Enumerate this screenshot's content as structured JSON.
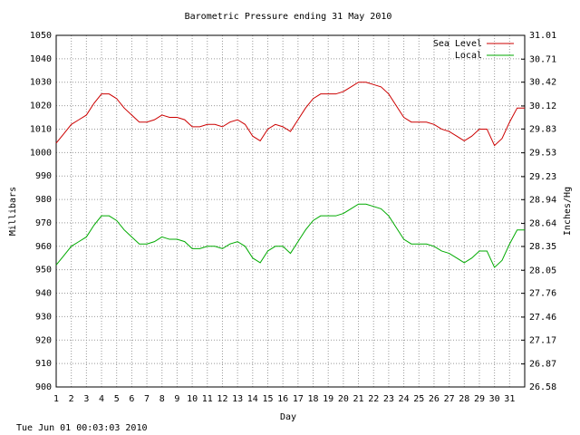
{
  "chart_data": {
    "type": "line",
    "title": "Barometric Pressure ending 31 May 2010",
    "ylabel": "Millibars",
    "y2label": "Inches/Hg",
    "xlabel": "Day",
    "footer": "Tue Jun 01 00:03:03 2010",
    "grid": true,
    "legend": "top-right",
    "xlim": [
      1,
      32
    ],
    "xticks": [
      1,
      2,
      3,
      4,
      5,
      6,
      7,
      8,
      9,
      10,
      11,
      12,
      13,
      14,
      15,
      16,
      17,
      18,
      19,
      20,
      21,
      22,
      23,
      24,
      25,
      26,
      27,
      28,
      29,
      30,
      31
    ],
    "ylim": [
      900,
      1050
    ],
    "yticks": [
      900,
      910,
      920,
      930,
      940,
      950,
      960,
      970,
      980,
      990,
      1000,
      1010,
      1020,
      1030,
      1040,
      1050
    ],
    "y2lim": [
      26.58,
      31.01
    ],
    "y2ticks": [
      26.58,
      26.87,
      27.17,
      27.46,
      27.76,
      28.05,
      28.35,
      28.64,
      28.94,
      29.23,
      29.53,
      29.83,
      30.12,
      30.42,
      30.71,
      31.01
    ],
    "x": [
      1,
      1.5,
      2,
      2.5,
      3,
      3.5,
      4,
      4.5,
      5,
      5.5,
      6,
      6.5,
      7,
      7.5,
      8,
      8.5,
      9,
      9.5,
      10,
      10.5,
      11,
      11.5,
      12,
      12.5,
      13,
      13.5,
      14,
      14.5,
      15,
      15.5,
      16,
      16.5,
      17,
      17.5,
      18,
      18.5,
      19,
      19.5,
      20,
      20.5,
      21,
      21.5,
      22,
      22.5,
      23,
      23.5,
      24,
      24.5,
      25,
      25.5,
      26,
      26.5,
      27,
      27.5,
      28,
      28.5,
      29,
      29.5,
      30,
      30.5,
      31,
      31.5,
      32
    ],
    "series": [
      {
        "name": "Sea Level",
        "color": "#cc0000",
        "values": [
          1004,
          1008,
          1012,
          1014,
          1016,
          1021,
          1025,
          1025,
          1023,
          1019,
          1016,
          1013,
          1013,
          1014,
          1016,
          1015,
          1015,
          1014,
          1011,
          1011,
          1012,
          1012,
          1011,
          1013,
          1014,
          1012,
          1007,
          1005,
          1010,
          1012,
          1011,
          1009,
          1014,
          1019,
          1023,
          1025,
          1025,
          1025,
          1026,
          1028,
          1030,
          1030,
          1029,
          1028,
          1025,
          1020,
          1015,
          1013,
          1013,
          1013,
          1012,
          1010,
          1009,
          1007,
          1005,
          1007,
          1010,
          1010,
          1003,
          1006,
          1013,
          1019,
          1019
        ]
      },
      {
        "name": "Local",
        "color": "#00aa00",
        "values": [
          952,
          956,
          960,
          962,
          964,
          969,
          973,
          973,
          971,
          967,
          964,
          961,
          961,
          962,
          964,
          963,
          963,
          962,
          959,
          959,
          960,
          960,
          959,
          961,
          962,
          960,
          955,
          953,
          958,
          960,
          960,
          957,
          962,
          967,
          971,
          973,
          973,
          973,
          974,
          976,
          978,
          978,
          977,
          976,
          973,
          968,
          963,
          961,
          961,
          961,
          960,
          958,
          957,
          955,
          953,
          955,
          958,
          958,
          951,
          954,
          961,
          967,
          967
        ]
      }
    ]
  }
}
